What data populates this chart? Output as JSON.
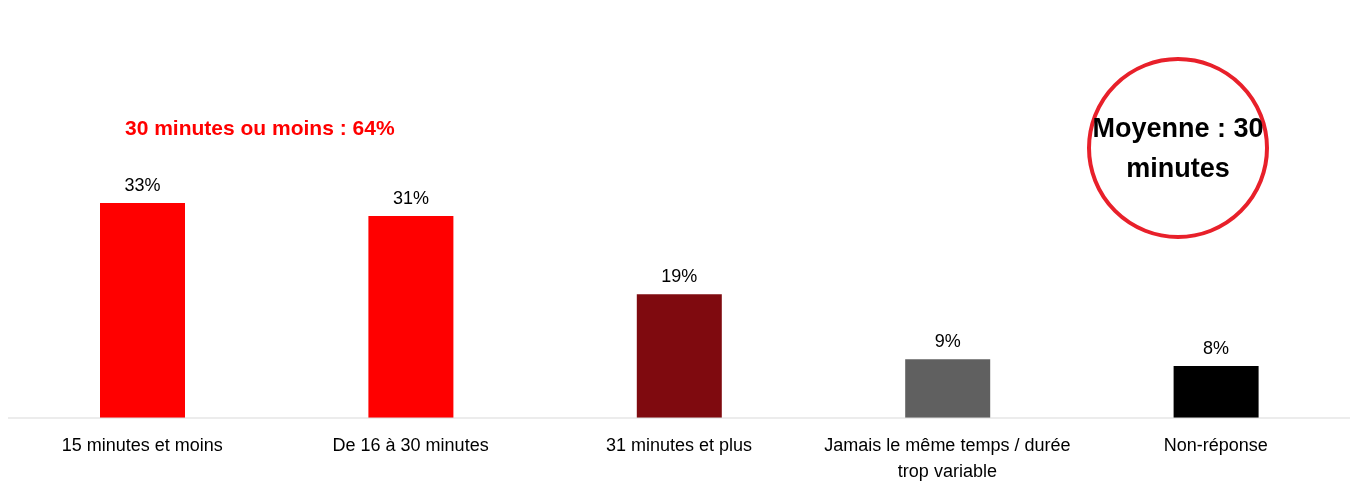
{
  "chart_data": {
    "type": "bar",
    "categories": [
      "15 minutes et moins",
      "De 16 à 30 minutes",
      "31 minutes et plus",
      "Jamais le même temps / durée trop variable",
      "Non-réponse"
    ],
    "values": [
      33,
      31,
      19,
      9,
      8
    ],
    "colors": [
      "#ff0000",
      "#ff0000",
      "#7f0a0f",
      "#606060",
      "#000000"
    ],
    "value_labels": [
      "33%",
      "31%",
      "19%",
      "9%",
      "8%"
    ],
    "annotations": [
      "30 minutes ou moins : 64%",
      "Moyenne : 30 minutes"
    ],
    "grid": false,
    "legend": false
  }
}
